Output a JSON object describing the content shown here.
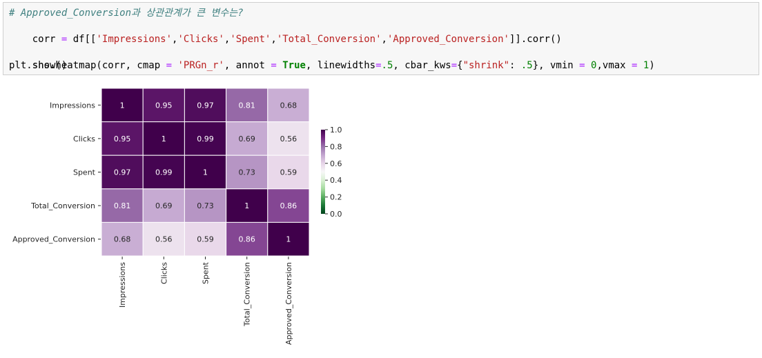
{
  "code": {
    "line1": "# Approved_Conversion과 상관관계가 큰 변수는?",
    "line2": [
      "corr ",
      "=",
      " df[[",
      "'Impressions'",
      ",",
      "'Clicks'",
      ",",
      "'Spent'",
      ",",
      "'Total_Conversion'",
      ",",
      "'Approved_Conversion'",
      "]].corr()"
    ],
    "line3": [
      "sns.heatmap(corr, cmap ",
      "=",
      " ",
      "'PRGn_r'",
      ", annot ",
      "=",
      " ",
      "True",
      ", linewidths",
      "=",
      ".5",
      ", cbar_kws",
      "=",
      "{",
      "\"shrink\"",
      ": ",
      ".5",
      "}, vmin ",
      "=",
      " ",
      "0",
      ",vmax ",
      "=",
      " ",
      "1",
      ")"
    ],
    "line4": "plt.show()"
  },
  "colors": {
    "comment": "#408080",
    "string": "#ba2121",
    "number": "#008000",
    "operator": "#aa22ff",
    "keyword": "#008000"
  },
  "chart_data": {
    "type": "heatmap",
    "cmap": "PRGn_r",
    "vmin": 0,
    "vmax": 1,
    "labels": [
      "Impressions",
      "Clicks",
      "Spent",
      "Total_Conversion",
      "Approved_Conversion"
    ],
    "values": [
      [
        1,
        0.95,
        0.97,
        0.81,
        0.68
      ],
      [
        0.95,
        1,
        0.99,
        0.69,
        0.56
      ],
      [
        0.97,
        0.99,
        1,
        0.73,
        0.59
      ],
      [
        0.81,
        0.69,
        0.73,
        1,
        0.86
      ],
      [
        0.68,
        0.56,
        0.59,
        0.86,
        1
      ]
    ],
    "colorbar_ticks": [
      "0.0",
      "0.2",
      "0.4",
      "0.6",
      "0.8",
      "1.0"
    ],
    "x_tick_rotation": "vertical",
    "annotated": true
  }
}
